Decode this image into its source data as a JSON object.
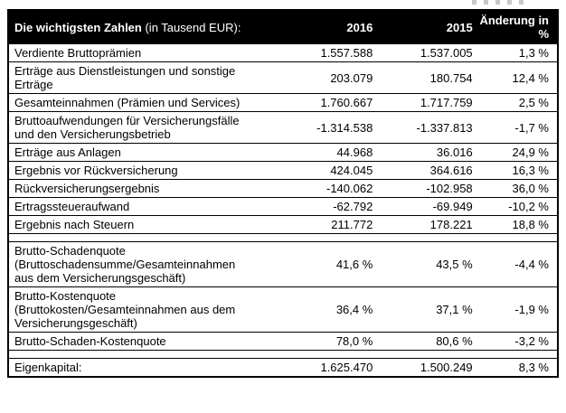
{
  "page": {
    "background": "#ffffff"
  },
  "colors": {
    "header_bg": "#000000",
    "header_text": "#ffffff",
    "body_text": "#000000",
    "border": "#000000"
  },
  "table": {
    "header": {
      "title": "Die wichtigsten Zahlen",
      "title_suffix": " (in Tausend EUR):",
      "col_2016": "2016",
      "col_2015": "2015",
      "col_change_line1": "Änderung in",
      "col_change_line2": "%"
    },
    "rows": [
      {
        "label": "Verdiente Bruttoprämien",
        "y2016": "1.557.588",
        "y2015": "1.537.005",
        "change": "1,3 %"
      },
      {
        "label": "Erträge aus Dienstleistungen und sonstige Erträge",
        "y2016": "203.079",
        "y2015": "180.754",
        "change": "12,4 %"
      },
      {
        "label": "Gesamteinnahmen (Prämien und Services)",
        "y2016": "1.760.667",
        "y2015": "1.717.759",
        "change": "2,5 %"
      },
      {
        "label": "Bruttoaufwendungen für Versicherungsfälle und den Versicherungsbetrieb",
        "y2016": "-1.314.538",
        "y2015": "-1.337.813",
        "change": "-1,7 %"
      },
      {
        "label": "Erträge aus Anlagen",
        "y2016": "44.968",
        "y2015": "36.016",
        "change": "24,9 %"
      },
      {
        "label": "Ergebnis vor Rückversicherung",
        "y2016": "424.045",
        "y2015": "364.616",
        "change": "16,3 %"
      },
      {
        "label": "Rückversicherungsergebnis",
        "y2016": "-140.062",
        "y2015": "-102.958",
        "change": "36,0 %"
      },
      {
        "label": "Ertragssteueraufwand",
        "y2016": "-62.792",
        "y2015": "-69.949",
        "change": "-10,2 %"
      },
      {
        "label": "Ergebnis nach Steuern",
        "y2016": "211.772",
        "y2015": "178.221",
        "change": "18,8 %"
      },
      {
        "spacer": true
      },
      {
        "label": "Brutto-Schadenquote (Bruttoschadensumme/Gesamteinnahmen aus dem Versicherungsgeschäft)",
        "y2016": "41,6 %",
        "y2015": "43,5 %",
        "change": "-4,4 %"
      },
      {
        "label": "Brutto-Kostenquote (Bruttokosten/Gesamteinnahmen aus dem Versicherungsgeschäft)",
        "y2016": "36,4 %",
        "y2015": "37,1 %",
        "change": "-1,9 %"
      },
      {
        "label": "Brutto-Schaden-Kostenquote",
        "y2016": "78,0 %",
        "y2015": "80,6 %",
        "change": "-3,2 %"
      },
      {
        "spacer": true
      },
      {
        "label": "Eigenkapital:",
        "y2016": "1.625.470",
        "y2015": "1.500.249",
        "change": "8,3 %"
      }
    ]
  }
}
